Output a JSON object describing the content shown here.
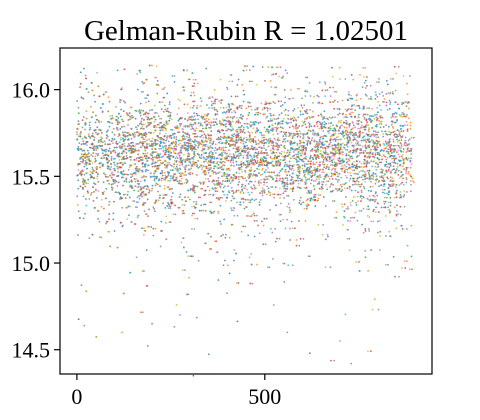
{
  "chart_data": {
    "type": "scatter",
    "title": "Gelman-Rubin R = 1.02501",
    "xlabel": "",
    "ylabel": "",
    "xlim": [
      -45,
      945
    ],
    "ylim": [
      14.36,
      16.24
    ],
    "x_ticks": [
      0,
      500
    ],
    "x_tick_labels": [
      "0",
      "500"
    ],
    "y_ticks": [
      14.5,
      15.0,
      15.5,
      16.0
    ],
    "y_tick_labels": [
      "14.5",
      "15.0",
      "15.5",
      "16.0"
    ],
    "grid": false,
    "legend": "none",
    "x_range_of_points": [
      0,
      900
    ],
    "num_chains": 10,
    "chain_colors": [
      "#1f77b4",
      "#ff7f0e",
      "#2ca02c",
      "#d62728",
      "#9467bd",
      "#8c564b",
      "#e377c2",
      "#7f7f7f",
      "#bcbd22",
      "#17becf"
    ],
    "density_bands": [
      {
        "y_range": [
          15.4,
          15.9
        ],
        "density": "very high"
      },
      {
        "y_range": [
          15.2,
          15.4
        ],
        "density": "high"
      },
      {
        "y_range": [
          15.9,
          16.1
        ],
        "density": "medium"
      },
      {
        "y_range": [
          14.9,
          15.2
        ],
        "density": "low"
      },
      {
        "y_range": [
          14.4,
          14.9
        ],
        "density": "very low"
      }
    ],
    "sample_points": [
      {
        "x": 10,
        "y": 16.1
      },
      {
        "x": 120,
        "y": 14.6
      },
      {
        "x": 200,
        "y": 14.65
      },
      {
        "x": 310,
        "y": 14.35
      },
      {
        "x": 560,
        "y": 14.6
      },
      {
        "x": 620,
        "y": 14.48
      },
      {
        "x": 700,
        "y": 14.55
      },
      {
        "x": 730,
        "y": 14.42
      },
      {
        "x": 850,
        "y": 15.2
      },
      {
        "x": 880,
        "y": 15.1
      }
    ]
  }
}
